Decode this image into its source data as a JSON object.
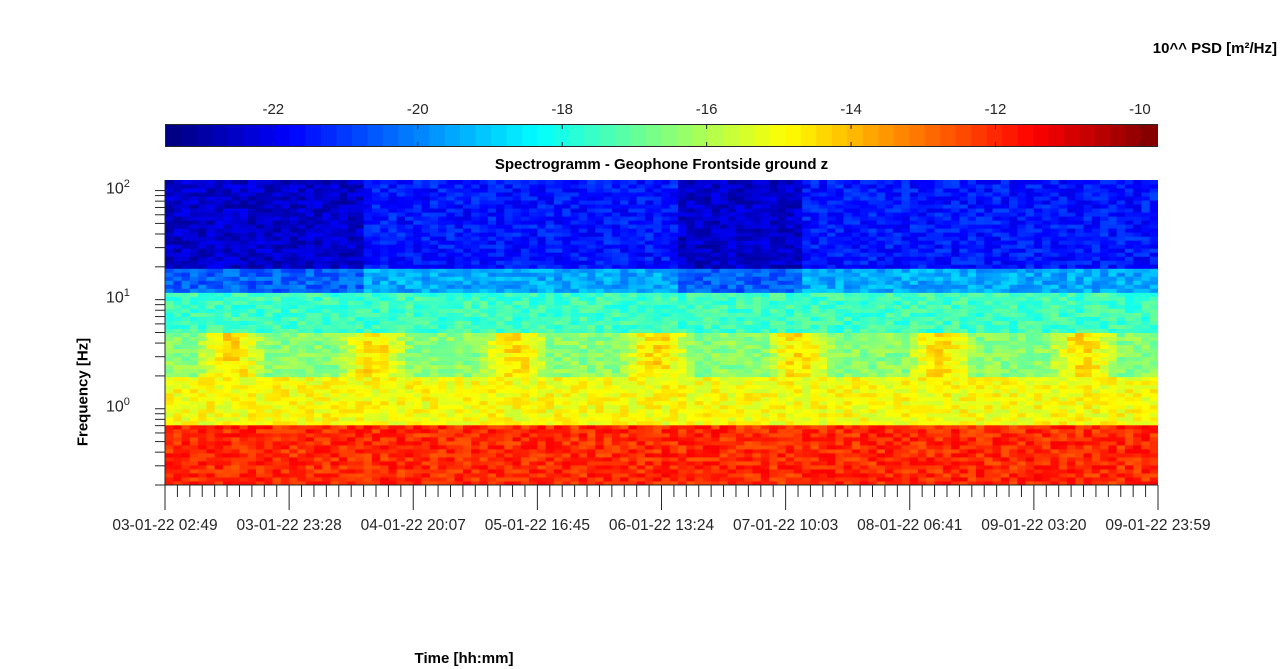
{
  "colorbar": {
    "title": "10^^ PSD [m²/Hz]",
    "range": [
      -23.5,
      -9.75
    ],
    "ticks": [
      "-22",
      "-20",
      "-18",
      "-16",
      "-14",
      "-12",
      "-10"
    ],
    "colormap": "jet"
  },
  "chart_data": {
    "type": "heatmap",
    "title": "Spectrogramm - Geophone Frontside ground z",
    "xlabel": "Time [hh:mm]",
    "ylabel": "Frequency [Hz]",
    "yscale": "log",
    "ylim_hz": [
      0.2,
      125
    ],
    "y_ticks": [
      {
        "base": "10",
        "exp": "0",
        "value": 1
      },
      {
        "base": "10",
        "exp": "1",
        "value": 10
      },
      {
        "base": "10",
        "exp": "2",
        "value": 100
      }
    ],
    "x_tick_labels": [
      "03-01-22 02:49",
      "03-01-22 23:28",
      "04-01-22 20:07",
      "05-01-22 16:45",
      "06-01-22 13:24",
      "07-01-22 10:03",
      "08-01-22 06:41",
      "09-01-22 03:20",
      "09-01-22 23:59"
    ],
    "color_by_frequency_band": [
      {
        "freq_hz": [
          20,
          125
        ],
        "psd_log10": -21.5
      },
      {
        "freq_hz": [
          12,
          20
        ],
        "psd_log10": -19.5
      },
      {
        "freq_hz": [
          5,
          12
        ],
        "psd_log10": -17.5
      },
      {
        "freq_hz": [
          2,
          5
        ],
        "psd_log10": -16.5
      },
      {
        "freq_hz": [
          0.7,
          2
        ],
        "psd_log10": -15.0
      },
      {
        "freq_hz": [
          0.2,
          0.7
        ],
        "psd_log10": -12.0
      }
    ]
  }
}
